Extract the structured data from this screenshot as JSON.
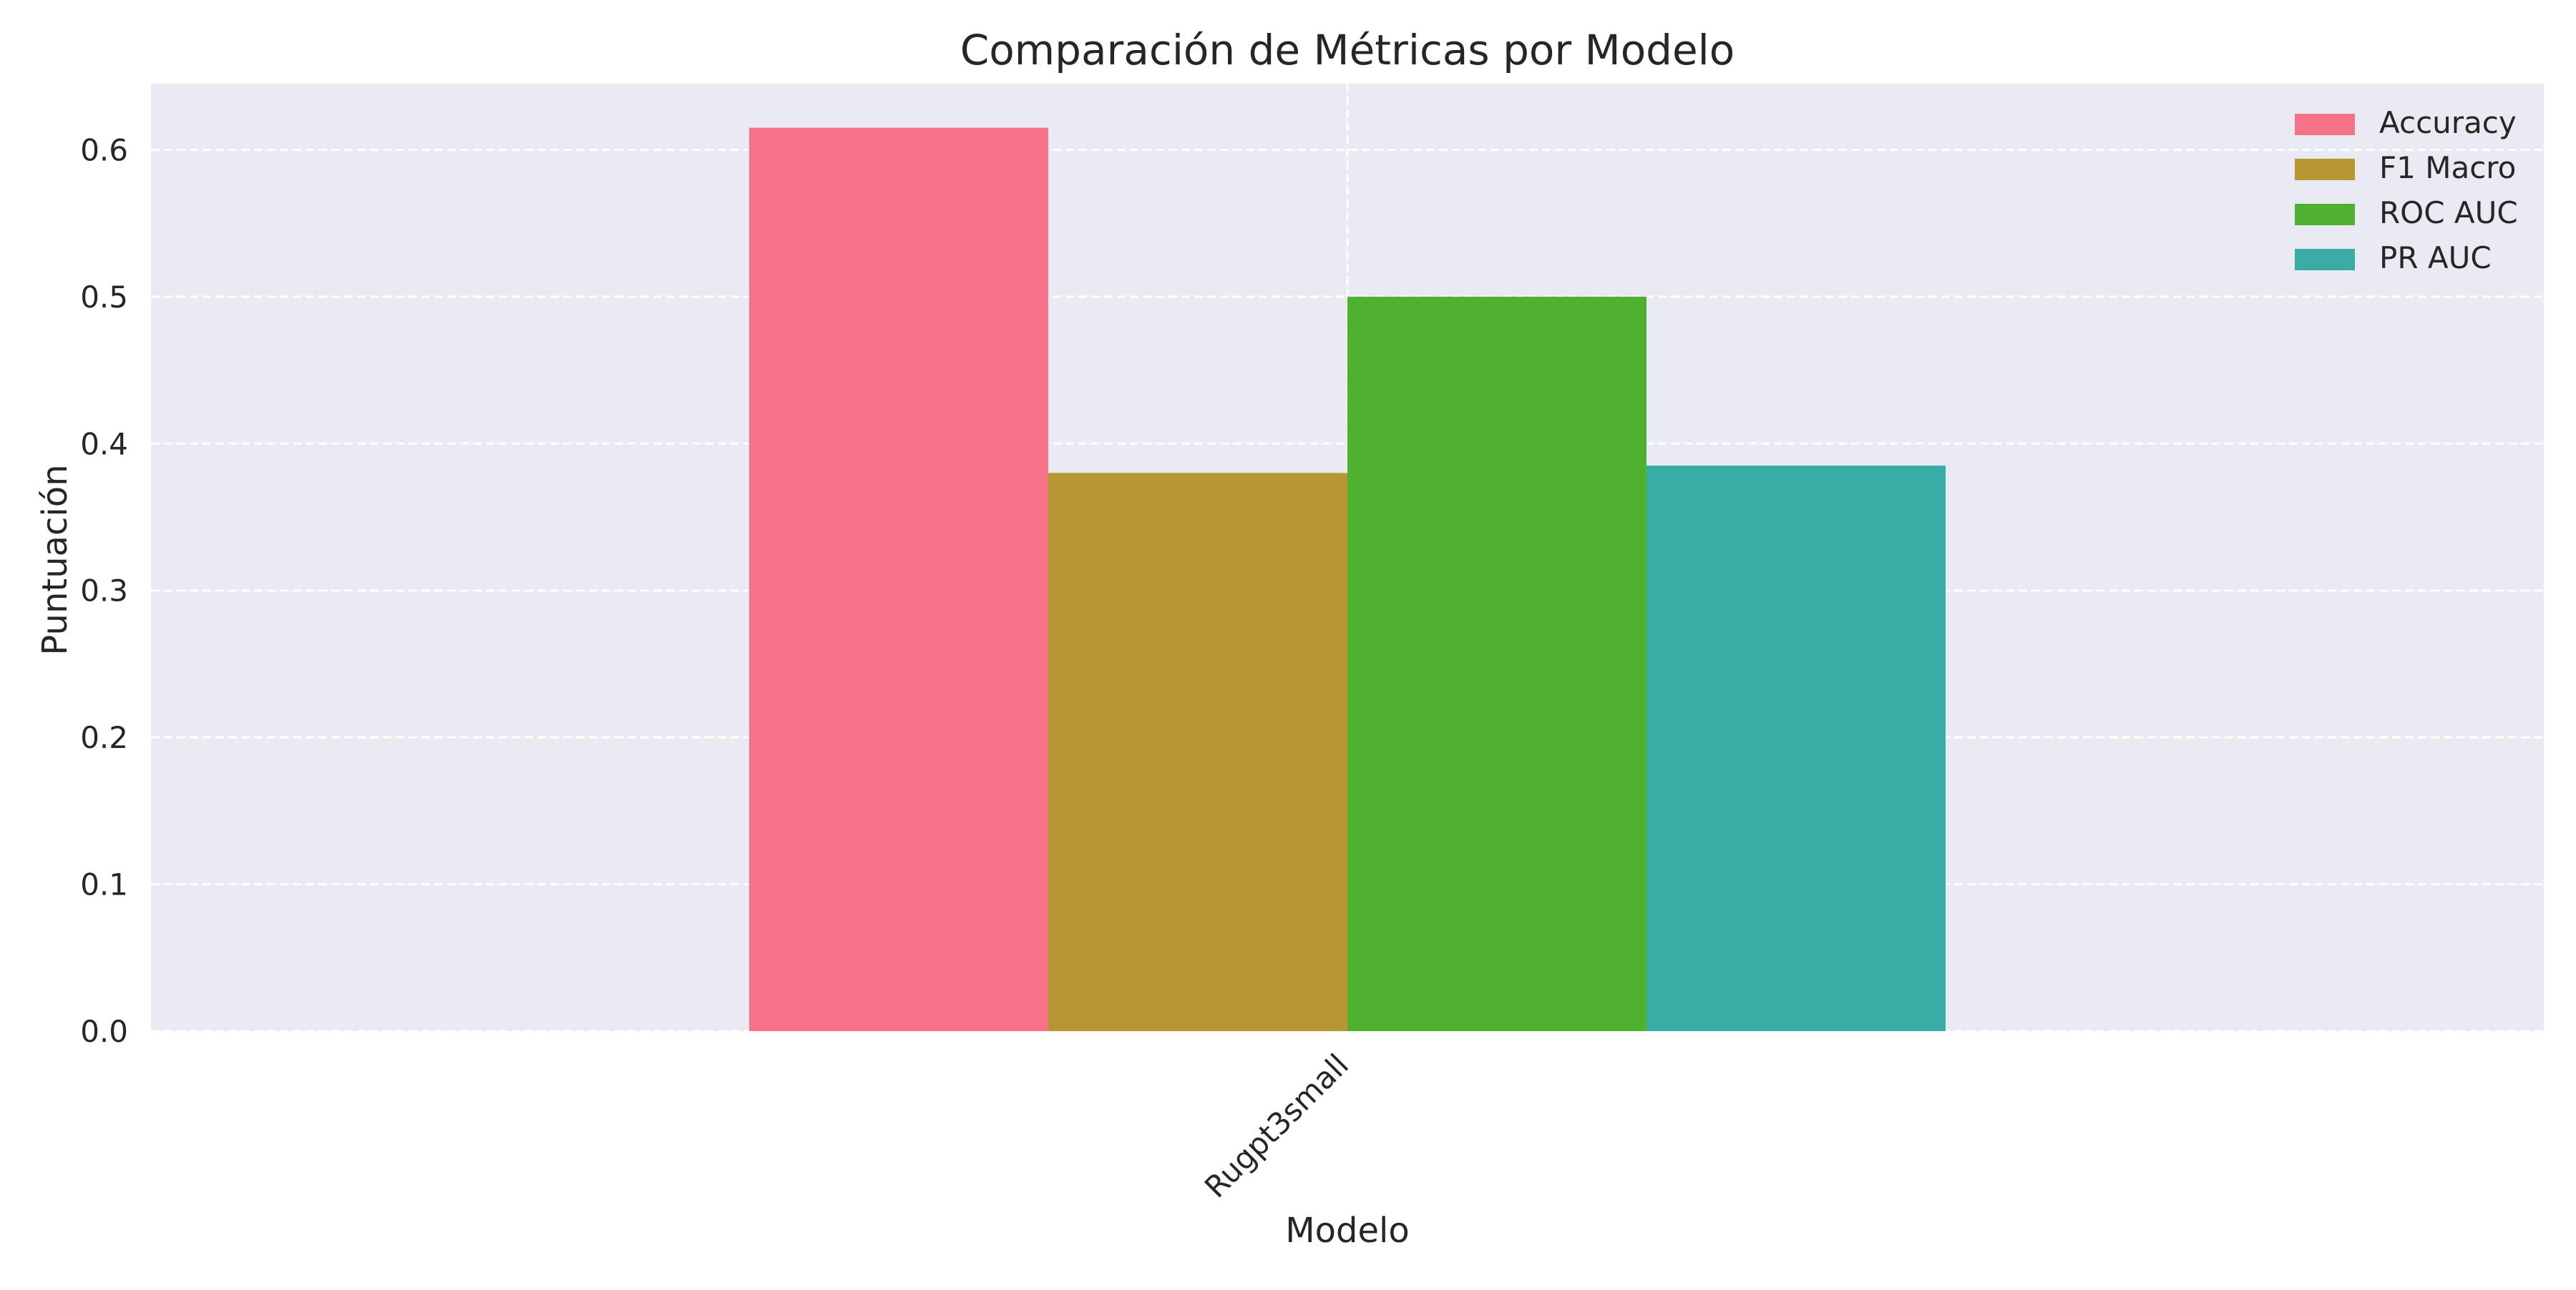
{
  "chart_data": {
    "type": "bar",
    "title": "Comparación de Métricas por Modelo",
    "xlabel": "Modelo",
    "ylabel": "Puntuación",
    "categories": [
      "Rugpt3small"
    ],
    "series": [
      {
        "name": "Accuracy",
        "values": [
          0.615
        ],
        "color": "#f77189"
      },
      {
        "name": "F1 Macro",
        "values": [
          0.38
        ],
        "color": "#b89733"
      },
      {
        "name": "ROC AUC",
        "values": [
          0.5
        ],
        "color": "#50b131"
      },
      {
        "name": "PR AUC",
        "values": [
          0.385
        ],
        "color": "#38aca5"
      }
    ],
    "ylim": [
      0,
      0.645
    ],
    "yticks": [
      "0.0",
      "0.1",
      "0.2",
      "0.3",
      "0.4",
      "0.5",
      "0.6"
    ],
    "grid": true,
    "legend_position": "top-right",
    "background_color": "#eaeaf2"
  }
}
